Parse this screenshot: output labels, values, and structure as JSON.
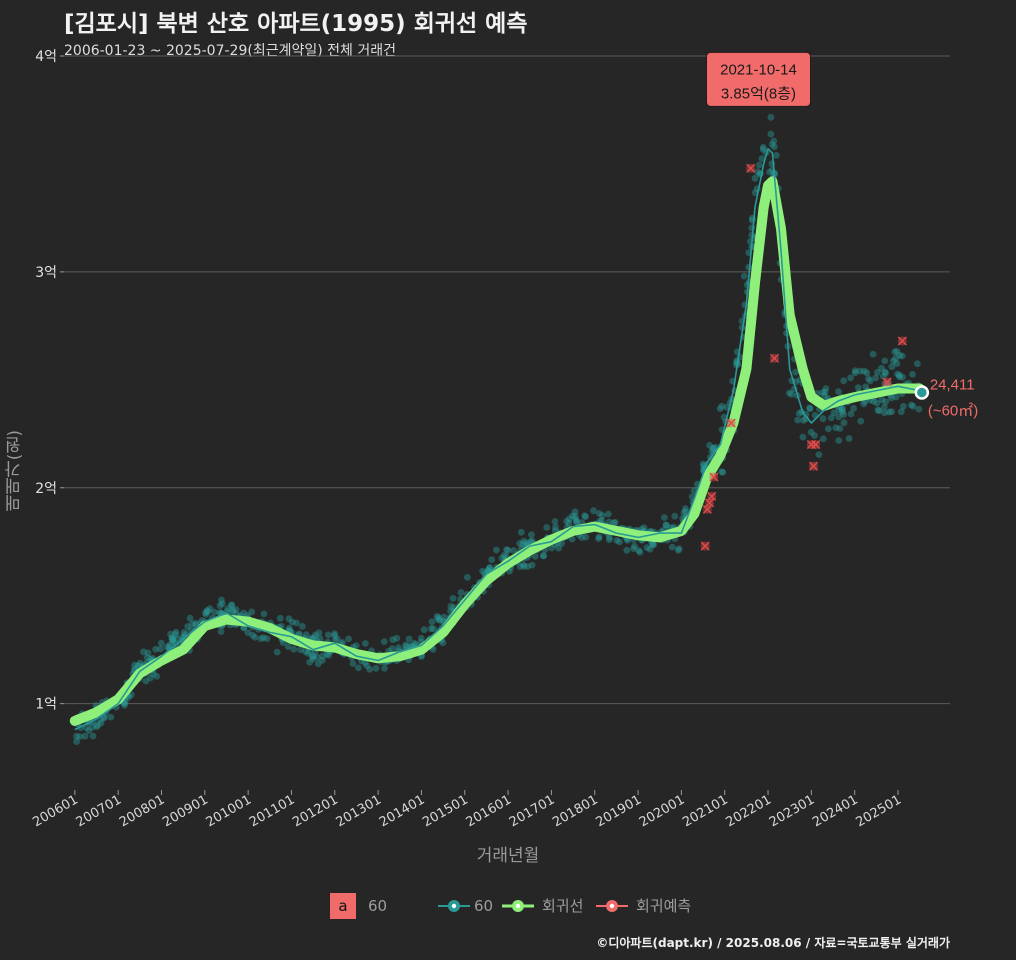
{
  "title": "[김포시] 북변 산호 아파트(1995) 회귀선 예측",
  "subtitle": "2006-01-23 ~ 2025-07-29(최근계약일) 전체 거래건",
  "footer": "©디아파트(dapt.kr) / 2025.08.06 / 자료=국토교통부 실거래가",
  "chart_data": {
    "type": "scatter",
    "title": "[김포시] 북변 산호 아파트(1995) 회귀선 예측",
    "xlabel": "거래년월",
    "ylabel": "매매가(원)",
    "ylim": [
      0.6,
      4.0
    ],
    "xlim": [
      2005.75,
      2026.2
    ],
    "y_ticks": [
      {
        "value": 1,
        "label": "1억"
      },
      {
        "value": 2,
        "label": "2억"
      },
      {
        "value": 3,
        "label": "3억"
      },
      {
        "value": 4,
        "label": "4억"
      }
    ],
    "x_ticks": [
      {
        "value": 2006,
        "label": "200601"
      },
      {
        "value": 2007,
        "label": "200701"
      },
      {
        "value": 2008,
        "label": "200801"
      },
      {
        "value": 2009,
        "label": "200901"
      },
      {
        "value": 2010,
        "label": "201001"
      },
      {
        "value": 2011,
        "label": "201101"
      },
      {
        "value": 2012,
        "label": "201201"
      },
      {
        "value": 2013,
        "label": "201301"
      },
      {
        "value": 2014,
        "label": "201401"
      },
      {
        "value": 2015,
        "label": "201501"
      },
      {
        "value": 2016,
        "label": "201601"
      },
      {
        "value": 2017,
        "label": "201701"
      },
      {
        "value": 2018,
        "label": "201801"
      },
      {
        "value": 2019,
        "label": "201901"
      },
      {
        "value": 2020,
        "label": "202001"
      },
      {
        "value": 2021,
        "label": "202101"
      },
      {
        "value": 2022,
        "label": "202201"
      },
      {
        "value": 2023,
        "label": "202301"
      },
      {
        "value": 2024,
        "label": "202401"
      },
      {
        "value": 2025,
        "label": "202501"
      }
    ],
    "series": [
      {
        "name": "회귀선",
        "color": "#8ef07a",
        "x": [
          2006.0,
          2006.5,
          2007.0,
          2007.5,
          2008.0,
          2008.5,
          2009.0,
          2009.5,
          2010.0,
          2010.5,
          2011.0,
          2011.5,
          2012.0,
          2012.5,
          2013.0,
          2013.5,
          2014.0,
          2014.5,
          2015.0,
          2015.5,
          2016.0,
          2016.5,
          2017.0,
          2017.5,
          2018.0,
          2018.5,
          2019.0,
          2019.5,
          2020.0,
          2020.3,
          2020.6,
          2020.9,
          2021.2,
          2021.5,
          2021.7,
          2021.9,
          2022.0,
          2022.1,
          2022.3,
          2022.5,
          2022.8,
          2023.0,
          2023.3,
          2023.6,
          2024.0,
          2024.5,
          2025.0,
          2025.5
        ],
        "values": [
          0.92,
          0.96,
          1.02,
          1.14,
          1.2,
          1.25,
          1.36,
          1.39,
          1.38,
          1.35,
          1.3,
          1.27,
          1.26,
          1.23,
          1.21,
          1.22,
          1.25,
          1.33,
          1.46,
          1.57,
          1.65,
          1.71,
          1.76,
          1.8,
          1.82,
          1.8,
          1.78,
          1.77,
          1.8,
          1.88,
          2.05,
          2.15,
          2.3,
          2.55,
          2.95,
          3.3,
          3.4,
          3.42,
          3.2,
          2.8,
          2.55,
          2.42,
          2.38,
          2.4,
          2.42,
          2.44,
          2.46,
          2.46
        ]
      },
      {
        "name": "60",
        "color": "#2a9a96",
        "x": [
          2006.0,
          2006.5,
          2007.0,
          2007.5,
          2008.0,
          2008.5,
          2009.0,
          2009.5,
          2010.0,
          2010.5,
          2011.0,
          2011.5,
          2012.0,
          2012.5,
          2013.0,
          2013.5,
          2014.0,
          2014.5,
          2015.0,
          2015.5,
          2016.0,
          2016.5,
          2017.0,
          2017.5,
          2018.0,
          2018.5,
          2019.0,
          2019.5,
          2020.0,
          2020.3,
          2020.6,
          2020.9,
          2021.2,
          2021.5,
          2021.7,
          2021.9,
          2022.0,
          2022.1,
          2022.3,
          2022.5,
          2022.8,
          2023.0,
          2023.3,
          2023.6,
          2024.0,
          2024.5,
          2025.0,
          2025.5
        ],
        "values": [
          0.88,
          0.93,
          1.0,
          1.15,
          1.22,
          1.3,
          1.38,
          1.42,
          1.36,
          1.33,
          1.31,
          1.25,
          1.28,
          1.22,
          1.2,
          1.24,
          1.27,
          1.36,
          1.48,
          1.6,
          1.66,
          1.73,
          1.75,
          1.82,
          1.83,
          1.79,
          1.77,
          1.79,
          1.79,
          1.95,
          2.12,
          2.2,
          2.45,
          2.85,
          3.3,
          3.5,
          3.57,
          3.55,
          3.1,
          2.55,
          2.35,
          2.3,
          2.36,
          2.4,
          2.43,
          2.45,
          2.47,
          2.45
        ]
      }
    ],
    "scatter_color": "#2a9a96",
    "prediction_points": {
      "name": "회귀예측",
      "color": "#e04a4a",
      "x": [
        2020.55,
        2020.6,
        2020.65,
        2020.7,
        2020.75,
        2021.15,
        2021.6,
        2022.15,
        2023.0,
        2023.05,
        2023.1,
        2024.75,
        2025.1
      ],
      "values": [
        1.73,
        1.9,
        1.93,
        1.96,
        2.05,
        2.3,
        3.48,
        2.6,
        2.2,
        2.1,
        2.2,
        2.49,
        2.68
      ]
    },
    "annotation": {
      "date": "2021-10-14",
      "value_text": "3.85억(8층)",
      "x": 2021.78,
      "value": 3.85,
      "fill": "#f26b6b"
    },
    "last_point": {
      "label": "24,411",
      "sublabel": "(~60㎡)",
      "x": 2025.55,
      "value": 2.4411,
      "color": "#f26b6b"
    },
    "legend": [
      {
        "kind": "box",
        "symbol": "a",
        "label": "60"
      },
      {
        "kind": "line",
        "label": "60",
        "color": "#2a9a96"
      },
      {
        "kind": "line",
        "label": "회귀선",
        "color": "#8ef07a"
      },
      {
        "kind": "line",
        "label": "회귀예측",
        "color": "#f26b6b"
      }
    ]
  }
}
